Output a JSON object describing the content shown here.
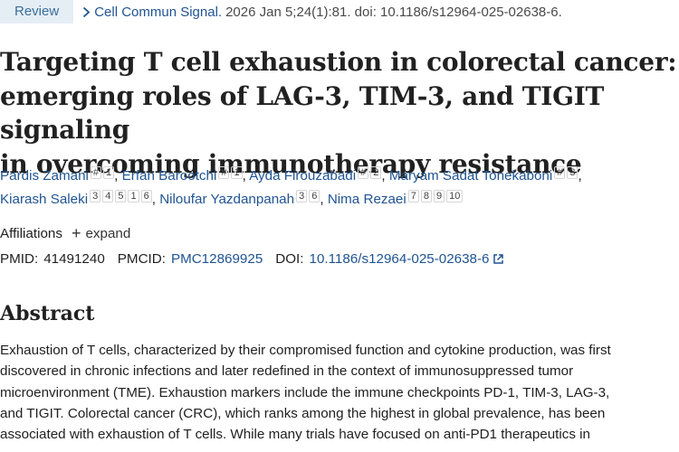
{
  "header": {
    "badge": "Review",
    "journal": "Cell Commun Signal.",
    "citation": "2026 Jan 5;24(1):81. doi: 10.1186/s12964-025-02638-6."
  },
  "title": {
    "line1": "Targeting T cell exhaustion in colorectal cancer:",
    "line2": "emerging roles of LAG-3, TIM-3, and TIGIT signaling",
    "line3": "in overcoming immunotherapy resistance"
  },
  "authors": [
    {
      "name": "Pardis Zamani",
      "sups": [
        "#",
        "1"
      ]
    },
    {
      "name": "Erfan Barootchi",
      "sups": [
        "#",
        "1"
      ]
    },
    {
      "name": "Ayda Firouzabadi",
      "sups": [
        "#",
        "2"
      ]
    },
    {
      "name": "Maryam Sadat Tonekaboni",
      "sups": [
        "#",
        "3"
      ]
    },
    {
      "name": "Kiarash Saleki",
      "sups": [
        "3",
        "4",
        "5",
        "1",
        "6"
      ]
    },
    {
      "name": "Niloufar Yazdanpanah",
      "sups": [
        "3",
        "6"
      ]
    },
    {
      "name": "Nima Rezaei",
      "sups": [
        "7",
        "8",
        "9",
        "10"
      ]
    }
  ],
  "separator": ",",
  "affiliations": {
    "label": "Affiliations",
    "expand": "expand"
  },
  "ids": {
    "pmid_label": "PMID:",
    "pmid": "41491240",
    "pmcid_label": "PMCID:",
    "pmcid": "PMC12869925",
    "doi_label": "DOI:",
    "doi": "10.1186/s12964-025-02638-6"
  },
  "abstract": {
    "heading": "Abstract",
    "lines": [
      "Exhaustion of T cells, characterized by their compromised function and cytokine production, was first",
      "discovered in chronic infections and later redefined in the context of immunosuppressed tumor",
      "microenvironment (TME). Exhaustion markers include the immune checkpoints PD-1, TIM-3, LAG-3,",
      "and TIGIT. Colorectal cancer (CRC), which ranks among the highest in global prevalence, has been",
      "associated with exhaustion of T cells. While many trials have focused on anti-PD1 therapeutics in"
    ]
  },
  "colors": {
    "link": "#205493",
    "badge_bg": "#e6eef5",
    "text": "#212121"
  }
}
